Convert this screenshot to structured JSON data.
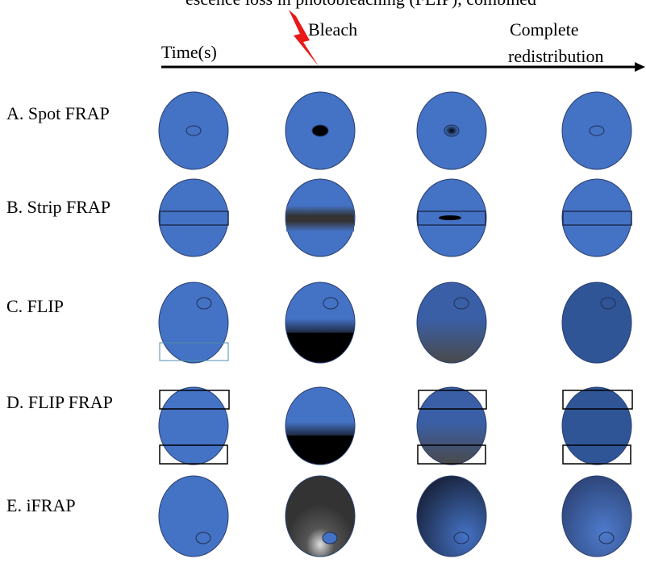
{
  "header": {
    "caption": "escence loss in photobleaching (FLIP), combined",
    "time": "Time(s)",
    "bleach": "Bleach",
    "complete": "Complete",
    "redistribution": "redistribution"
  },
  "rows": [
    "A. Spot FRAP",
    "B. Strip FRAP",
    "C. FLIP",
    "D. FLIP FRAP",
    "E. iFRAP"
  ]
}
